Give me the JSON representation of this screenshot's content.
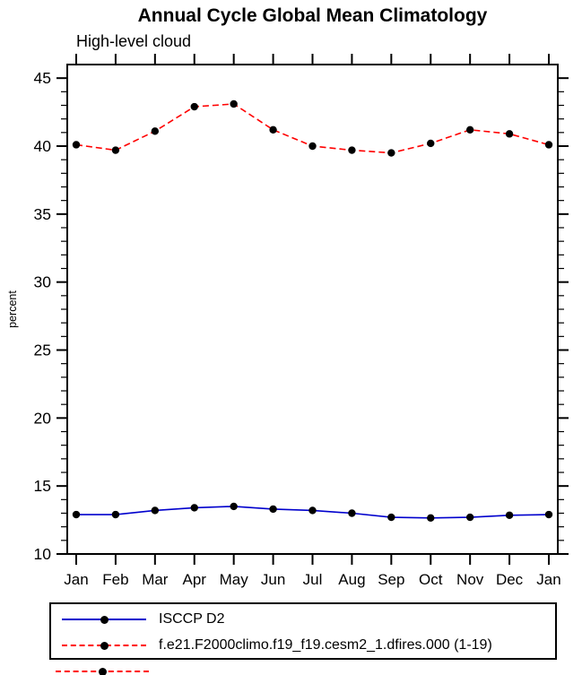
{
  "title": "Annual Cycle Global Mean Climatology",
  "subtitle": "High-level cloud",
  "chart_data": {
    "type": "line",
    "title": "Annual Cycle Global Mean Climatology",
    "subtitle": "High-level cloud",
    "xlabel": "",
    "ylabel": "percent",
    "categories": [
      "Jan",
      "Feb",
      "Mar",
      "Apr",
      "May",
      "Jun",
      "Jul",
      "Aug",
      "Sep",
      "Oct",
      "Nov",
      "Dec",
      "Jan"
    ],
    "ylim": [
      10,
      46
    ],
    "yticks": [
      10,
      15,
      20,
      25,
      30,
      35,
      40,
      45
    ],
    "minor_tick_interval": 1,
    "grid": false,
    "legend_position": "bottom",
    "series": [
      {
        "name": "ISCCP D2",
        "color": "#0000cd",
        "line_style": "solid",
        "marker": "filled-circle",
        "marker_color": "#000000",
        "values": [
          12.9,
          12.9,
          13.2,
          13.4,
          13.5,
          13.3,
          13.2,
          13.0,
          12.7,
          12.65,
          12.7,
          12.85,
          12.9
        ]
      },
      {
        "name": "f.e21.F2000climo.f19_f19.cesm2_1.dfires.000 (1-19)",
        "color": "#ff0000",
        "line_style": "dashed",
        "marker": "filled-circle",
        "marker_color": "#000000",
        "values": [
          40.1,
          39.7,
          41.1,
          42.9,
          43.1,
          41.2,
          40.0,
          39.7,
          39.5,
          40.2,
          41.2,
          40.9,
          40.1
        ]
      }
    ]
  },
  "legend": {
    "items": [
      {
        "label": "ISCCP D2"
      },
      {
        "label": "f.e21.F2000climo.f19_f19.cesm2_1.dfires.000 (1-19)"
      }
    ]
  }
}
